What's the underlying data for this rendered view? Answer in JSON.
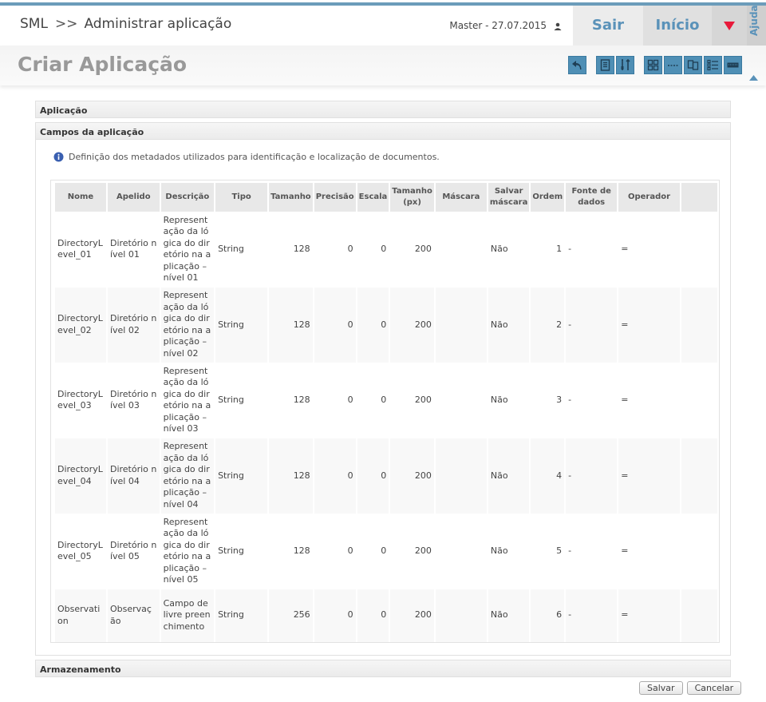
{
  "header": {
    "system": "SML",
    "separator": ">>",
    "module": "Administrar aplicação",
    "user_info": "Master - 27.07.2015",
    "logout_label": "Sair",
    "home_label": "Início",
    "help_label": "Ajuda"
  },
  "page": {
    "title": "Criar Aplicação"
  },
  "toolbar": {
    "icons": [
      "back-icon",
      "document-icon",
      "tools-icon",
      "grid-icon",
      "separator-icon",
      "copy-icon",
      "list-icon",
      "keyboard-icon"
    ]
  },
  "sections": {
    "aplicacao": "Aplicação",
    "campos": "Campos da aplicação",
    "armazenamento": "Armazenamento"
  },
  "campos": {
    "info_text": "Definição dos metadados utilizados para identificação e localização de documentos.",
    "columns": [
      "Nome",
      "Apelido",
      "Descrição",
      "Tipo",
      "Tamanho",
      "Precisão",
      "Escala",
      "Tamanho (px)",
      "Máscara",
      "Salvar máscara",
      "Ordem",
      "Fonte de dados",
      "Operador",
      ""
    ],
    "rows": [
      {
        "nome": "DirectoryLevel_01",
        "apelido": "Diretório nível 01",
        "descricao": "Representação da lógica do diretório na aplicação – nível 01",
        "tipo": "String",
        "tamanho": "128",
        "precisao": "0",
        "escala": "0",
        "tamanho_px": "200",
        "mascara": "",
        "salvar_mascara": "Não",
        "ordem": "1",
        "fonte": "-",
        "operador": "="
      },
      {
        "nome": "DirectoryLevel_02",
        "apelido": "Diretório nível 02",
        "descricao": "Representação da lógica do diretório na aplicação – nível 02",
        "tipo": "String",
        "tamanho": "128",
        "precisao": "0",
        "escala": "0",
        "tamanho_px": "200",
        "mascara": "",
        "salvar_mascara": "Não",
        "ordem": "2",
        "fonte": "-",
        "operador": "="
      },
      {
        "nome": "DirectoryLevel_03",
        "apelido": "Diretório nível 03",
        "descricao": "Representação da lógica do diretório na aplicação – nível 03",
        "tipo": "String",
        "tamanho": "128",
        "precisao": "0",
        "escala": "0",
        "tamanho_px": "200",
        "mascara": "",
        "salvar_mascara": "Não",
        "ordem": "3",
        "fonte": "-",
        "operador": "="
      },
      {
        "nome": "DirectoryLevel_04",
        "apelido": "Diretório nível 04",
        "descricao": "Representação da lógica do diretório na aplicação – nível 04",
        "tipo": "String",
        "tamanho": "128",
        "precisao": "0",
        "escala": "0",
        "tamanho_px": "200",
        "mascara": "",
        "salvar_mascara": "Não",
        "ordem": "4",
        "fonte": "-",
        "operador": "="
      },
      {
        "nome": "DirectoryLevel_05",
        "apelido": "Diretório nível 05",
        "descricao": "Representação da lógica do diretório na aplicação – nível 05",
        "tipo": "String",
        "tamanho": "128",
        "precisao": "0",
        "escala": "0",
        "tamanho_px": "200",
        "mascara": "",
        "salvar_mascara": "Não",
        "ordem": "5",
        "fonte": "-",
        "operador": "="
      },
      {
        "nome": "Observation",
        "apelido": "Observação",
        "descricao": "Campo de livre preenchimento",
        "tipo": "String",
        "tamanho": "256",
        "precisao": "0",
        "escala": "0",
        "tamanho_px": "200",
        "mascara": "",
        "salvar_mascara": "Não",
        "ordem": "6",
        "fonte": "-",
        "operador": "="
      }
    ]
  },
  "footer": {
    "save_label": "Salvar",
    "cancel_label": "Cancelar"
  },
  "colors": {
    "accent": "#5a92b9",
    "toolbar_button": "#4f8fb5",
    "menu_arrow": "#e8193a",
    "title_gray": "#999999"
  }
}
